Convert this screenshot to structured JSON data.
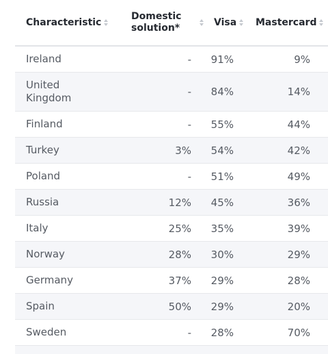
{
  "columns": [
    {
      "label": "Characteristic"
    },
    {
      "label": "Domestic\nsolution*"
    },
    {
      "label": "Visa"
    },
    {
      "label": "Mastercard"
    }
  ],
  "rows": [
    {
      "name": "Ireland",
      "domestic": "-",
      "visa": "91%",
      "mastercard": "9%"
    },
    {
      "name": "United\nKingdom",
      "domestic": "-",
      "visa": "84%",
      "mastercard": "14%"
    },
    {
      "name": "Finland",
      "domestic": "-",
      "visa": "55%",
      "mastercard": "44%"
    },
    {
      "name": "Turkey",
      "domestic": "3%",
      "visa": "54%",
      "mastercard": "42%"
    },
    {
      "name": "Poland",
      "domestic": "-",
      "visa": "51%",
      "mastercard": "49%"
    },
    {
      "name": "Russia",
      "domestic": "12%",
      "visa": "45%",
      "mastercard": "36%"
    },
    {
      "name": "Italy",
      "domestic": "25%",
      "visa": "35%",
      "mastercard": "39%"
    },
    {
      "name": "Norway",
      "domestic": "28%",
      "visa": "30%",
      "mastercard": "29%"
    },
    {
      "name": "Germany",
      "domestic": "37%",
      "visa": "29%",
      "mastercard": "28%"
    },
    {
      "name": "Spain",
      "domestic": "50%",
      "visa": "29%",
      "mastercard": "20%"
    },
    {
      "name": "Sweden",
      "domestic": "-",
      "visa": "28%",
      "mastercard": "70%"
    }
  ],
  "colors": {
    "header_text": "#262a31",
    "body_text": "#555a62",
    "alt_row_bg": "#f5f6f9",
    "sort_icon": "#c4c8ce"
  },
  "icons": {
    "sort": "sort-icon"
  }
}
